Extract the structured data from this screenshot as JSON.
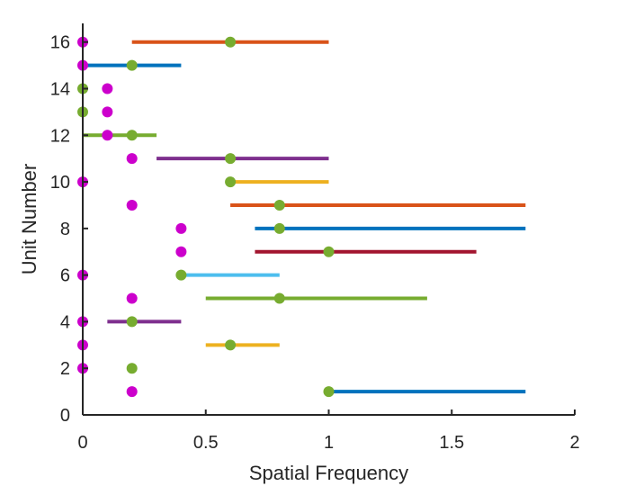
{
  "chart_data": {
    "type": "scatter",
    "title": "",
    "xlabel": "Spatial Frequency",
    "ylabel": "Unit Number",
    "xlim": [
      0,
      2
    ],
    "ylim": [
      0,
      16.8
    ],
    "xticks": [
      0,
      0.5,
      1,
      1.5,
      2
    ],
    "xtick_labels": [
      "0",
      "0.5",
      "1",
      "1.5",
      "2"
    ],
    "yticks": [
      0,
      2,
      4,
      6,
      8,
      10,
      12,
      14,
      16
    ],
    "ytick_labels": [
      "0",
      "2",
      "4",
      "6",
      "8",
      "10",
      "12",
      "14",
      "16"
    ],
    "grid": false,
    "legend": "none",
    "colors": {
      "magenta_point": "#cc00cc",
      "green_point": "#77ac30",
      "axis": "#262626"
    },
    "ranges": [
      {
        "unit": 1,
        "x_start": 1.0,
        "x_end": 1.8,
        "color": "#0072bd"
      },
      {
        "unit": 3,
        "x_start": 0.5,
        "x_end": 0.8,
        "color": "#edb120"
      },
      {
        "unit": 4,
        "x_start": 0.1,
        "x_end": 0.4,
        "color": "#7e2f8e"
      },
      {
        "unit": 5,
        "x_start": 0.5,
        "x_end": 1.4,
        "color": "#77ac30"
      },
      {
        "unit": 6,
        "x_start": 0.4,
        "x_end": 0.8,
        "color": "#4dbeee"
      },
      {
        "unit": 7,
        "x_start": 0.7,
        "x_end": 1.6,
        "color": "#a2142f"
      },
      {
        "unit": 8,
        "x_start": 0.7,
        "x_end": 1.8,
        "color": "#0072bd"
      },
      {
        "unit": 9,
        "x_start": 0.6,
        "x_end": 1.8,
        "color": "#d95319"
      },
      {
        "unit": 10,
        "x_start": 0.6,
        "x_end": 1.0,
        "color": "#edb120"
      },
      {
        "unit": 11,
        "x_start": 0.3,
        "x_end": 1.0,
        "color": "#7e2f8e"
      },
      {
        "unit": 12,
        "x_start": 0.0,
        "x_end": 0.3,
        "color": "#77ac30"
      },
      {
        "unit": 15,
        "x_start": 0.0,
        "x_end": 0.4,
        "color": "#0072bd"
      },
      {
        "unit": 16,
        "x_start": 0.2,
        "x_end": 1.0,
        "color": "#d95319"
      }
    ],
    "magenta_points": [
      {
        "unit": 1,
        "x": 0.2
      },
      {
        "unit": 2,
        "x": 0.0
      },
      {
        "unit": 3,
        "x": 0.0
      },
      {
        "unit": 4,
        "x": 0.0
      },
      {
        "unit": 5,
        "x": 0.2
      },
      {
        "unit": 6,
        "x": 0.0
      },
      {
        "unit": 7,
        "x": 0.4
      },
      {
        "unit": 8,
        "x": 0.4
      },
      {
        "unit": 9,
        "x": 0.2
      },
      {
        "unit": 10,
        "x": 0.0
      },
      {
        "unit": 11,
        "x": 0.2
      },
      {
        "unit": 12,
        "x": 0.1
      },
      {
        "unit": 13,
        "x": 0.1
      },
      {
        "unit": 14,
        "x": 0.1
      },
      {
        "unit": 15,
        "x": 0.0
      },
      {
        "unit": 16,
        "x": 0.0
      }
    ],
    "green_points": [
      {
        "unit": 1,
        "x": 1.0
      },
      {
        "unit": 2,
        "x": 0.2
      },
      {
        "unit": 3,
        "x": 0.6
      },
      {
        "unit": 4,
        "x": 0.2
      },
      {
        "unit": 5,
        "x": 0.8
      },
      {
        "unit": 6,
        "x": 0.4
      },
      {
        "unit": 7,
        "x": 1.0
      },
      {
        "unit": 8,
        "x": 0.8
      },
      {
        "unit": 9,
        "x": 0.8
      },
      {
        "unit": 10,
        "x": 0.6
      },
      {
        "unit": 11,
        "x": 0.6
      },
      {
        "unit": 12,
        "x": 0.2
      },
      {
        "unit": 13,
        "x": 0.0
      },
      {
        "unit": 14,
        "x": 0.0
      },
      {
        "unit": 15,
        "x": 0.2
      },
      {
        "unit": 16,
        "x": 0.6
      }
    ]
  }
}
